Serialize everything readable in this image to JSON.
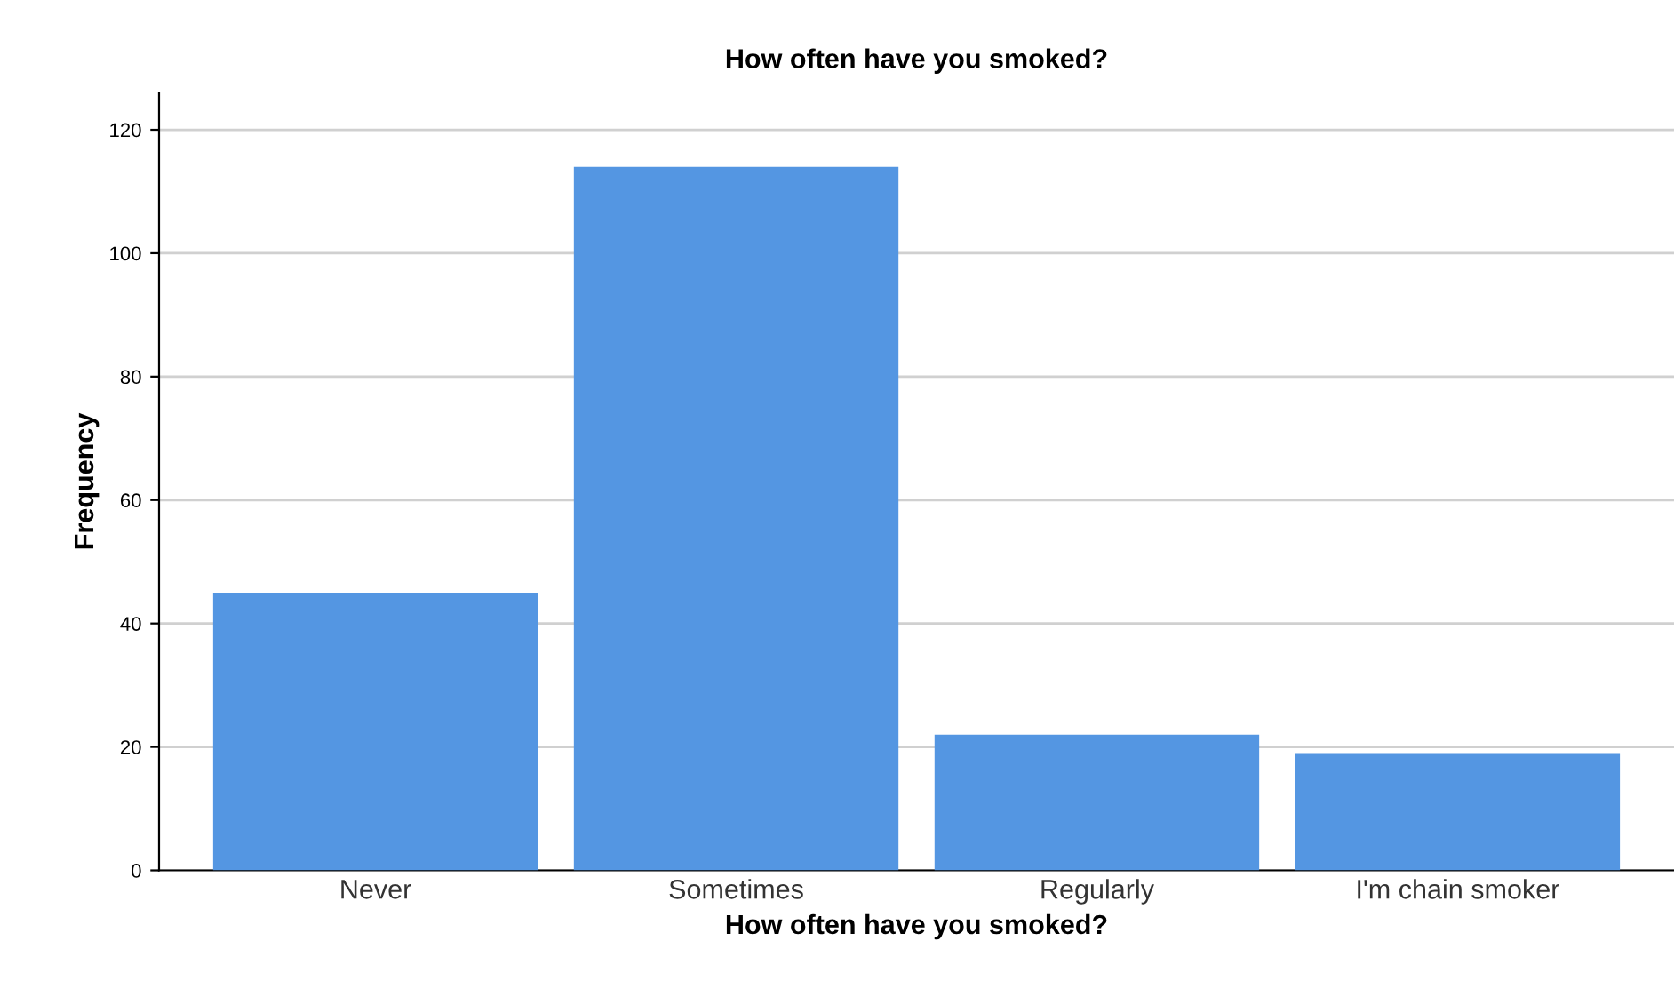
{
  "chart_data": {
    "type": "bar",
    "title": "How often have you smoked?",
    "xlabel": "How often have you smoked?",
    "ylabel": "Frequency",
    "categories": [
      "Never",
      "Sometimes",
      "Regularly",
      "I'm chain smoker"
    ],
    "values": [
      45,
      114,
      22,
      19
    ],
    "color": "#5496e2",
    "ylim": [
      0,
      126
    ],
    "yticks": [
      0,
      20,
      40,
      60,
      80,
      100,
      120
    ],
    "grid": "y"
  }
}
